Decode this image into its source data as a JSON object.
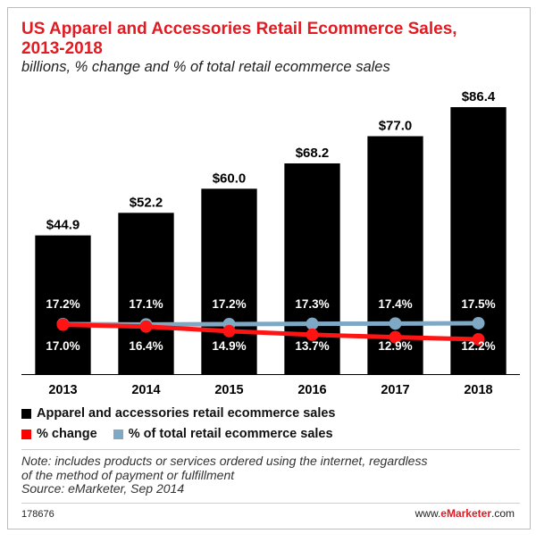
{
  "title_lines": [
    "US Apparel and Accessories Retail Ecommerce Sales,",
    "2013-2018"
  ],
  "subtitle": "billions, % change and % of total retail ecommerce sales",
  "chart_data": {
    "type": "bar",
    "categories": [
      "2013",
      "2014",
      "2015",
      "2016",
      "2017",
      "2018"
    ],
    "values": [
      44.9,
      52.2,
      60.0,
      68.2,
      77.0,
      86.4
    ],
    "bar_labels": [
      "$44.9",
      "$52.2",
      "$60.0",
      "$68.2",
      "$77.0",
      "$86.4"
    ],
    "series": [
      {
        "name": "Apparel and accessories retail ecommerce sales",
        "values": [
          44.9,
          52.2,
          60.0,
          68.2,
          77.0,
          86.4
        ],
        "color": "#000000"
      },
      {
        "name": "% change",
        "values": [
          17.0,
          16.4,
          14.9,
          13.7,
          12.9,
          12.2
        ],
        "labels": [
          "17.0%",
          "16.4%",
          "14.9%",
          "13.7%",
          "12.9%",
          "12.2%"
        ],
        "color": "#ff0000"
      },
      {
        "name": "% of total retail ecommerce sales",
        "values": [
          17.2,
          17.1,
          17.2,
          17.3,
          17.4,
          17.5
        ],
        "labels": [
          "17.2%",
          "17.1%",
          "17.2%",
          "17.3%",
          "17.4%",
          "17.5%"
        ],
        "color": "#7fa8c4"
      }
    ],
    "grid": false
  },
  "legend": [
    {
      "label": "Apparel and accessories retail ecommerce sales",
      "color": "#000000"
    },
    {
      "label": "% change",
      "color": "#ff0000"
    },
    {
      "label": "% of total retail ecommerce sales",
      "color": "#7fa8c4"
    }
  ],
  "note_lines": [
    "Note: includes products or services ordered using the internet, regardless",
    "of the method of payment or fulfillment",
    "Source: eMarketer, Sep 2014"
  ],
  "footer": {
    "id": "178676",
    "brand_prefix": "www.",
    "brand_name": "eMarketer",
    "brand_suffix": ".com"
  }
}
